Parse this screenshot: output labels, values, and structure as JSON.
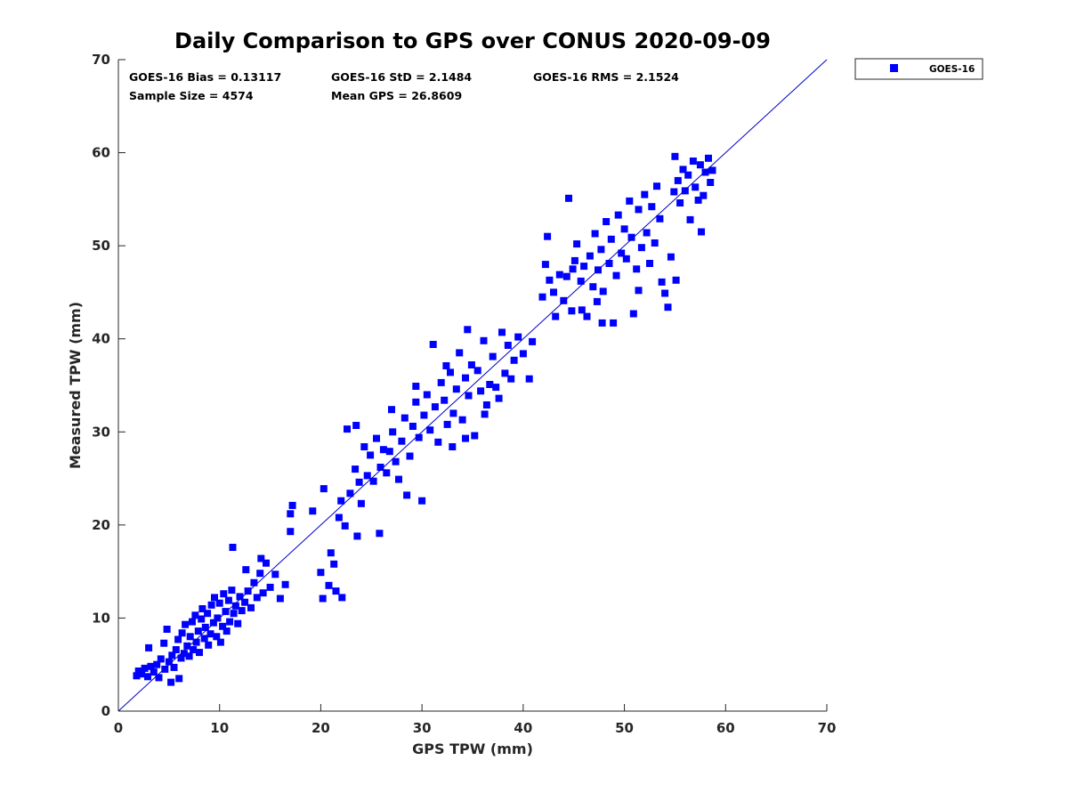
{
  "chart_data": {
    "type": "scatter",
    "title": "Daily Comparison to GPS over CONUS 2020-09-09",
    "xlabel": "GPS TPW (mm)",
    "ylabel": "Measured TPW (mm)",
    "xlim": [
      0,
      70
    ],
    "ylim": [
      0,
      70
    ],
    "xticks": [
      0,
      10,
      20,
      30,
      40,
      50,
      60,
      70
    ],
    "yticks": [
      0,
      10,
      20,
      30,
      40,
      50,
      60,
      70
    ],
    "grid": false,
    "legend_position": "outside-top-right",
    "marker": "square",
    "colors": {
      "series": "#0000ff",
      "reference_line": "#0000cc",
      "axis": "#262626"
    },
    "reference_line": {
      "type": "one-to-one",
      "from": [
        0,
        0
      ],
      "to": [
        70,
        70
      ]
    },
    "stats": {
      "bias": "GOES-16 Bias = 0.13117",
      "std": "GOES-16 StD = 2.1484",
      "rms": "GOES-16 RMS = 2.1524",
      "sample_size": "Sample Size = 4574",
      "mean_gps": "Mean GPS = 26.8609"
    },
    "series": [
      {
        "name": "GOES-16",
        "points": [
          [
            1.8,
            3.8
          ],
          [
            2.0,
            4.3
          ],
          [
            2.3,
            4.0
          ],
          [
            2.6,
            4.6
          ],
          [
            2.9,
            3.7
          ],
          [
            3.2,
            4.8
          ],
          [
            3.0,
            6.8
          ],
          [
            3.5,
            4.2
          ],
          [
            3.8,
            5.0
          ],
          [
            4.0,
            3.6
          ],
          [
            4.2,
            5.6
          ],
          [
            4.5,
            7.3
          ],
          [
            4.6,
            4.5
          ],
          [
            4.8,
            8.8
          ],
          [
            5.0,
            5.3
          ],
          [
            5.2,
            3.1
          ],
          [
            5.3,
            6.0
          ],
          [
            5.5,
            4.7
          ],
          [
            5.7,
            6.6
          ],
          [
            5.9,
            7.7
          ],
          [
            6.0,
            3.5
          ],
          [
            6.2,
            5.7
          ],
          [
            6.3,
            8.4
          ],
          [
            6.5,
            6.2
          ],
          [
            6.6,
            9.3
          ],
          [
            6.8,
            7.0
          ],
          [
            7.0,
            5.9
          ],
          [
            7.1,
            8.0
          ],
          [
            7.3,
            9.6
          ],
          [
            7.4,
            6.6
          ],
          [
            7.6,
            10.3
          ],
          [
            7.7,
            7.4
          ],
          [
            7.9,
            8.6
          ],
          [
            8.0,
            6.3
          ],
          [
            8.2,
            9.9
          ],
          [
            8.3,
            11.0
          ],
          [
            8.5,
            7.8
          ],
          [
            8.6,
            9.0
          ],
          [
            8.8,
            10.5
          ],
          [
            8.9,
            7.1
          ],
          [
            9.1,
            8.3
          ],
          [
            9.2,
            11.4
          ],
          [
            9.4,
            9.5
          ],
          [
            9.5,
            12.2
          ],
          [
            9.7,
            8.0
          ],
          [
            9.8,
            10.0
          ],
          [
            10.0,
            11.6
          ],
          [
            10.1,
            7.4
          ],
          [
            10.3,
            9.1
          ],
          [
            10.4,
            12.6
          ],
          [
            10.6,
            10.7
          ],
          [
            10.7,
            8.6
          ],
          [
            10.9,
            11.9
          ],
          [
            11.0,
            9.6
          ],
          [
            11.2,
            13.0
          ],
          [
            11.4,
            10.5
          ],
          [
            11.6,
            11.3
          ],
          [
            11.8,
            9.4
          ],
          [
            12.0,
            12.3
          ],
          [
            12.2,
            10.8
          ],
          [
            12.5,
            11.7
          ],
          [
            12.8,
            12.9
          ],
          [
            13.1,
            11.1
          ],
          [
            13.4,
            13.8
          ],
          [
            13.7,
            12.2
          ],
          [
            14.0,
            14.8
          ],
          [
            14.3,
            12.7
          ],
          [
            14.6,
            15.9
          ],
          [
            15.0,
            13.3
          ],
          [
            15.5,
            14.7
          ],
          [
            16.0,
            12.1
          ],
          [
            16.5,
            13.6
          ],
          [
            11.3,
            17.6
          ],
          [
            12.6,
            15.2
          ],
          [
            14.1,
            16.4
          ],
          [
            17.0,
            19.3
          ],
          [
            17.0,
            21.2
          ],
          [
            17.2,
            22.1
          ],
          [
            19.2,
            21.5
          ],
          [
            20.3,
            23.9
          ],
          [
            20.0,
            14.9
          ],
          [
            20.2,
            12.1
          ],
          [
            20.8,
            13.5
          ],
          [
            21.3,
            15.8
          ],
          [
            21.5,
            12.9
          ],
          [
            22.1,
            12.2
          ],
          [
            21.0,
            17.0
          ],
          [
            21.8,
            20.8
          ],
          [
            22.0,
            22.6
          ],
          [
            22.4,
            19.9
          ],
          [
            22.9,
            23.4
          ],
          [
            23.6,
            18.8
          ],
          [
            23.4,
            26.0
          ],
          [
            23.8,
            24.6
          ],
          [
            24.0,
            22.3
          ],
          [
            24.3,
            28.4
          ],
          [
            22.6,
            30.3
          ],
          [
            23.5,
            30.7
          ],
          [
            24.6,
            25.3
          ],
          [
            24.9,
            27.5
          ],
          [
            25.2,
            24.7
          ],
          [
            25.5,
            29.3
          ],
          [
            25.8,
            19.1
          ],
          [
            25.9,
            26.2
          ],
          [
            26.2,
            28.1
          ],
          [
            26.5,
            25.6
          ],
          [
            26.8,
            27.9
          ],
          [
            27.1,
            30.0
          ],
          [
            27.4,
            26.8
          ],
          [
            27.7,
            24.9
          ],
          [
            28.0,
            29.0
          ],
          [
            28.3,
            31.5
          ],
          [
            28.5,
            23.2
          ],
          [
            28.8,
            27.4
          ],
          [
            29.1,
            30.6
          ],
          [
            29.4,
            33.2
          ],
          [
            29.7,
            29.4
          ],
          [
            30.0,
            22.6
          ],
          [
            30.2,
            31.8
          ],
          [
            30.5,
            34.0
          ],
          [
            30.8,
            30.2
          ],
          [
            31.1,
            39.4
          ],
          [
            31.3,
            32.7
          ],
          [
            31.6,
            28.9
          ],
          [
            31.9,
            35.3
          ],
          [
            32.2,
            33.4
          ],
          [
            32.5,
            30.8
          ],
          [
            32.8,
            36.4
          ],
          [
            33.1,
            32.0
          ],
          [
            33.4,
            34.6
          ],
          [
            33.7,
            38.5
          ],
          [
            34.0,
            31.3
          ],
          [
            34.3,
            35.8
          ],
          [
            34.6,
            33.9
          ],
          [
            34.9,
            37.2
          ],
          [
            35.2,
            29.6
          ],
          [
            35.5,
            36.6
          ],
          [
            35.8,
            34.4
          ],
          [
            36.1,
            39.8
          ],
          [
            36.4,
            32.9
          ],
          [
            36.7,
            35.1
          ],
          [
            37.0,
            38.1
          ],
          [
            37.3,
            34.8
          ],
          [
            37.6,
            33.6
          ],
          [
            37.9,
            40.7
          ],
          [
            38.2,
            36.3
          ],
          [
            38.5,
            39.3
          ],
          [
            38.8,
            35.7
          ],
          [
            39.1,
            37.7
          ],
          [
            39.5,
            40.2
          ],
          [
            40.0,
            38.4
          ],
          [
            40.6,
            35.7
          ],
          [
            40.9,
            39.7
          ],
          [
            34.3,
            29.3
          ],
          [
            33.0,
            28.4
          ],
          [
            36.2,
            31.9
          ],
          [
            34.5,
            41.0
          ],
          [
            32.4,
            37.1
          ],
          [
            29.4,
            34.9
          ],
          [
            27.0,
            32.4
          ],
          [
            41.9,
            44.5
          ],
          [
            42.2,
            48.0
          ],
          [
            42.6,
            46.3
          ],
          [
            43.0,
            45.0
          ],
          [
            43.2,
            42.4
          ],
          [
            43.6,
            46.9
          ],
          [
            44.0,
            44.1
          ],
          [
            44.3,
            46.7
          ],
          [
            44.8,
            43.0
          ],
          [
            45.1,
            48.4
          ],
          [
            45.3,
            50.2
          ],
          [
            45.7,
            46.2
          ],
          [
            46.0,
            47.8
          ],
          [
            46.3,
            42.4
          ],
          [
            46.6,
            48.9
          ],
          [
            46.9,
            45.6
          ],
          [
            47.1,
            51.3
          ],
          [
            47.4,
            47.4
          ],
          [
            47.7,
            49.6
          ],
          [
            47.9,
            45.1
          ],
          [
            48.2,
            52.6
          ],
          [
            48.5,
            48.1
          ],
          [
            48.7,
            50.7
          ],
          [
            48.9,
            41.7
          ],
          [
            49.2,
            46.8
          ],
          [
            49.4,
            53.3
          ],
          [
            49.7,
            49.2
          ],
          [
            50.0,
            51.8
          ],
          [
            50.2,
            48.6
          ],
          [
            50.5,
            54.8
          ],
          [
            50.7,
            50.9
          ],
          [
            50.9,
            42.7
          ],
          [
            51.2,
            47.5
          ],
          [
            51.4,
            53.9
          ],
          [
            51.7,
            49.8
          ],
          [
            52.0,
            55.5
          ],
          [
            52.2,
            51.4
          ],
          [
            52.5,
            48.1
          ],
          [
            52.7,
            54.2
          ],
          [
            53.0,
            50.3
          ],
          [
            53.2,
            56.4
          ],
          [
            53.5,
            52.9
          ],
          [
            53.7,
            46.1
          ],
          [
            54.0,
            44.9
          ],
          [
            54.3,
            43.4
          ],
          [
            54.6,
            48.8
          ],
          [
            54.9,
            55.8
          ],
          [
            55.0,
            59.6
          ],
          [
            55.3,
            57.0
          ],
          [
            55.5,
            54.6
          ],
          [
            55.8,
            58.2
          ],
          [
            56.0,
            55.9
          ],
          [
            56.3,
            57.6
          ],
          [
            56.5,
            52.8
          ],
          [
            56.8,
            59.1
          ],
          [
            57.0,
            56.3
          ],
          [
            57.3,
            54.9
          ],
          [
            57.5,
            58.7
          ],
          [
            57.8,
            55.4
          ],
          [
            58.0,
            57.9
          ],
          [
            58.3,
            59.4
          ],
          [
            58.5,
            56.8
          ],
          [
            58.7,
            58.1
          ],
          [
            57.6,
            51.5
          ],
          [
            55.1,
            46.3
          ],
          [
            51.4,
            45.2
          ],
          [
            47.3,
            44.0
          ],
          [
            45.8,
            43.1
          ],
          [
            44.9,
            47.5
          ],
          [
            44.5,
            55.1
          ],
          [
            42.4,
            51.0
          ],
          [
            47.8,
            41.7
          ]
        ]
      }
    ]
  }
}
